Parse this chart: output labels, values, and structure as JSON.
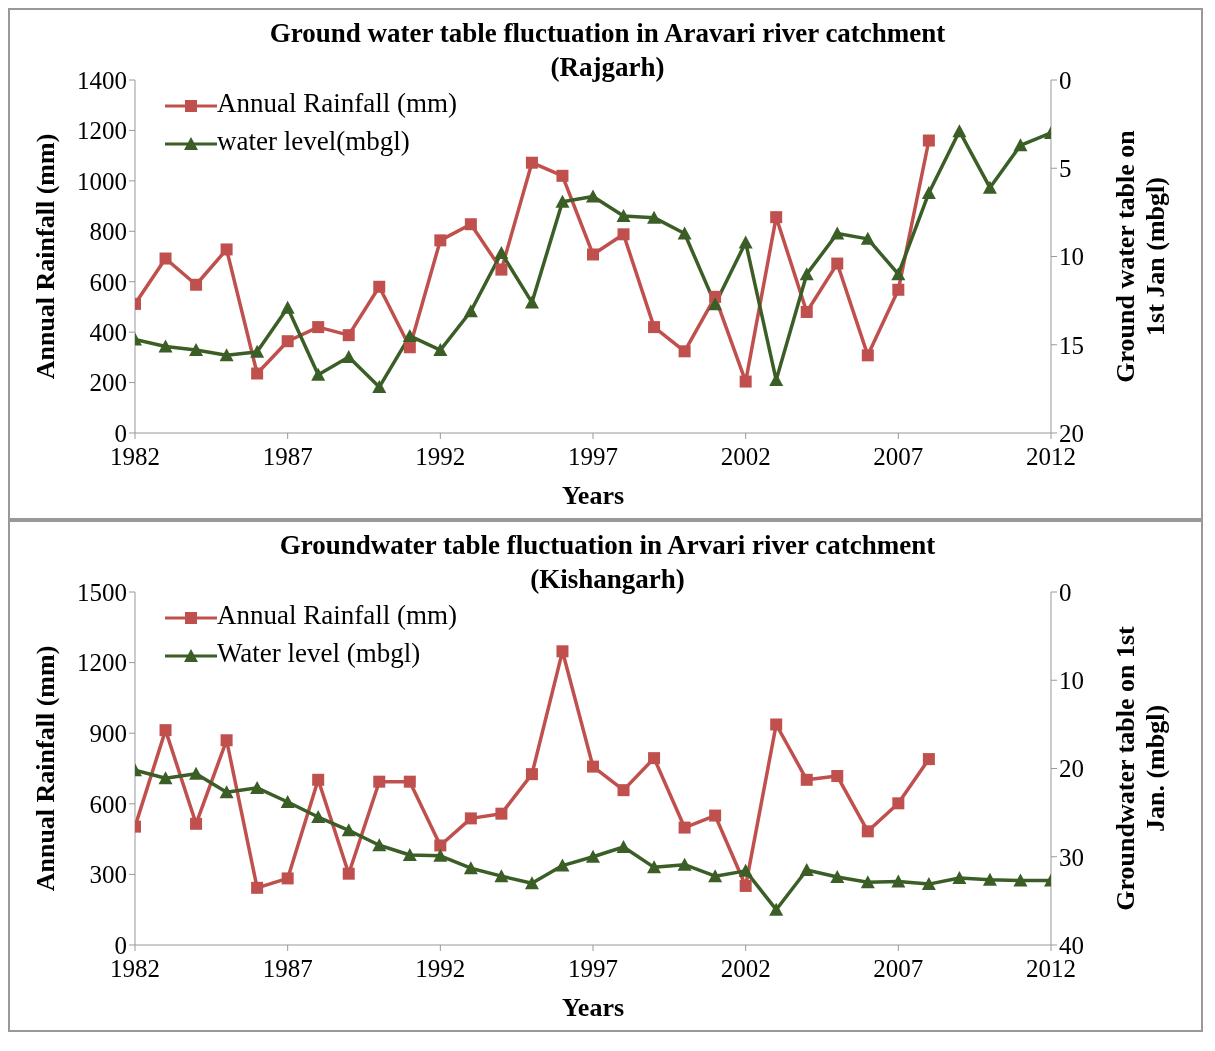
{
  "chart_data": [
    {
      "type": "line",
      "title": "Ground water table fluctuation in Aravari river catchment",
      "subtitle": "(Rajgarh)",
      "xlabel": "Years",
      "ylabel": "Annual Rainfall (mm)",
      "y2label": "Ground water  table on 1st Jan (mbgl)",
      "x": [
        1982,
        1983,
        1984,
        1985,
        1986,
        1987,
        1988,
        1989,
        1990,
        1991,
        1992,
        1993,
        1994,
        1995,
        1996,
        1997,
        1998,
        1999,
        2000,
        2001,
        2002,
        2003,
        2004,
        2005,
        2006,
        2007,
        2008,
        2009,
        2010,
        2011,
        2012
      ],
      "series": [
        {
          "name": "Annual Rainfall (mm)",
          "color": "#c0504d",
          "marker": "square",
          "values": [
            512,
            692,
            588,
            728,
            236,
            364,
            420,
            388,
            580,
            340,
            764,
            828,
            648,
            1072,
            1020,
            708,
            788,
            420,
            324,
            540,
            204,
            856,
            480,
            672,
            308,
            568,
            1160,
            null,
            null,
            null,
            null
          ]
        },
        {
          "name": "water level(mbgl)",
          "color": "#3b5e27",
          "marker": "triangle",
          "axis": "y2",
          "values": [
            14.7,
            15.1,
            15.3,
            15.6,
            15.4,
            12.9,
            16.7,
            15.7,
            17.4,
            14.5,
            15.3,
            13.1,
            9.8,
            12.6,
            6.9,
            6.6,
            7.7,
            7.8,
            8.7,
            12.7,
            9.2,
            17.0,
            11.0,
            8.7,
            9.0,
            11.0,
            6.4,
            2.9,
            6.1,
            3.7,
            3.0
          ]
        }
      ],
      "xlim": [
        1982,
        2012
      ],
      "xticks": [
        1982,
        1987,
        1992,
        1997,
        2002,
        2007,
        2012
      ],
      "ylim": [
        0,
        1400
      ],
      "yticks": [
        0,
        200,
        400,
        600,
        800,
        1000,
        1200,
        1400
      ],
      "y2lim": [
        20,
        0
      ],
      "y2ticks": [
        0,
        5,
        10,
        15,
        20
      ],
      "legend": "top left",
      "grid": false
    },
    {
      "type": "line",
      "title": "Groundwater table fluctuation in Arvari river catchment",
      "subtitle": "(Kishangarh)",
      "xlabel": "Years",
      "ylabel": "Annual Rainfall (mm)",
      "y2label": "Groundwater table on 1st Jan. (mbgl)",
      "x": [
        1982,
        1983,
        1984,
        1985,
        1986,
        1987,
        1988,
        1989,
        1990,
        1991,
        1992,
        1993,
        1994,
        1995,
        1996,
        1997,
        1998,
        1999,
        2000,
        2001,
        2002,
        2003,
        2004,
        2005,
        2006,
        2007,
        2008,
        2009,
        2010,
        2011,
        2012
      ],
      "series": [
        {
          "name": "Annual Rainfall (mm)",
          "color": "#c0504d",
          "marker": "square",
          "values": [
            503,
            913,
            515,
            870,
            243,
            283,
            702,
            303,
            694,
            694,
            423,
            538,
            558,
            726,
            1248,
            758,
            658,
            794,
            499,
            550,
            251,
            937,
            702,
            718,
            483,
            602,
            790,
            null,
            null,
            null,
            null
          ]
        },
        {
          "name": "Water level (mbgl)",
          "color": "#3b5e27",
          "marker": "triangle",
          "axis": "y2",
          "values": [
            20.2,
            21.1,
            20.6,
            22.7,
            22.2,
            23.8,
            25.5,
            27.0,
            28.7,
            29.8,
            29.9,
            31.3,
            32.2,
            33.0,
            31.0,
            30.0,
            28.9,
            31.2,
            30.9,
            32.2,
            31.6,
            36.0,
            31.5,
            32.3,
            32.9,
            32.8,
            33.1,
            32.4,
            32.6,
            32.7,
            32.7
          ]
        }
      ],
      "xlim": [
        1982,
        2012
      ],
      "xticks": [
        1982,
        1987,
        1992,
        1997,
        2002,
        2007,
        2012
      ],
      "ylim": [
        0,
        1500
      ],
      "yticks": [
        0,
        300,
        600,
        900,
        1200,
        1500
      ],
      "y2lim": [
        40,
        0
      ],
      "y2ticks": [
        0,
        10,
        20,
        30,
        40
      ],
      "legend": "top left",
      "grid": false
    }
  ]
}
